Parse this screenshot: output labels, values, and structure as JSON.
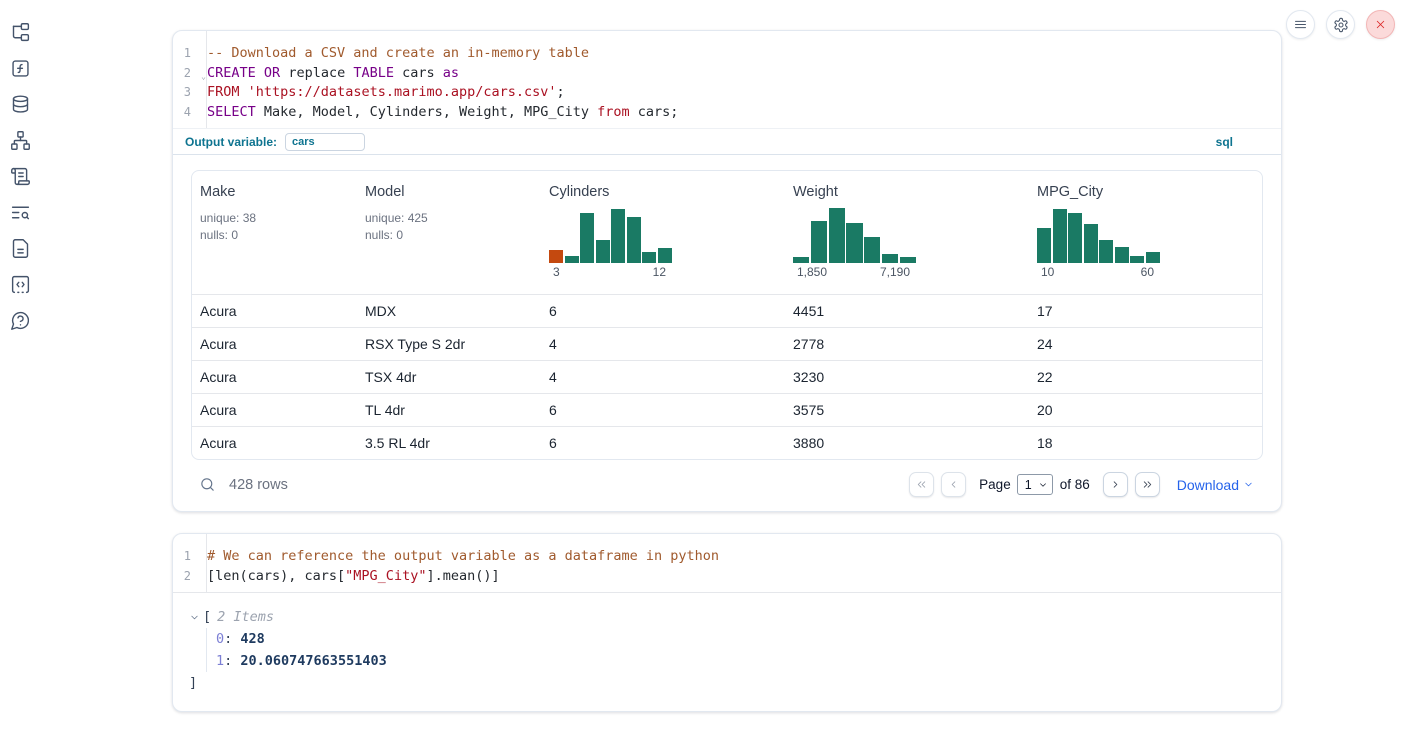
{
  "colors": {
    "accent_teal": "#0e7490",
    "hist_green": "#1a7a64",
    "hist_orange": "#c4490f",
    "link_blue": "#2563eb",
    "danger_red": "#dc2626"
  },
  "sidebar": {
    "icons": [
      "file-tree-icon",
      "function-icon",
      "database-icon",
      "dependency-graph-icon",
      "scratchpad-icon",
      "logs-search-icon",
      "documentation-icon",
      "snippets-icon",
      "help-icon"
    ]
  },
  "topbar": {
    "buttons": [
      "menu-icon",
      "settings-gear-icon",
      "shutdown-x-icon"
    ]
  },
  "cells": {
    "sql": {
      "lines": [
        {
          "n": "1",
          "tokens": [
            [
              "com",
              "-- Download a CSV and create an in-memory table"
            ]
          ]
        },
        {
          "n": "2",
          "fold": true,
          "tokens": [
            [
              "kw",
              "CREATE"
            ],
            [
              "pl",
              " "
            ],
            [
              "kw",
              "OR"
            ],
            [
              "pl",
              " replace "
            ],
            [
              "kw",
              "TABLE"
            ],
            [
              "pl",
              " cars "
            ],
            [
              "kw",
              "as"
            ]
          ]
        },
        {
          "n": "3",
          "tokens": [
            [
              "kw2",
              "FROM"
            ],
            [
              "pl",
              " "
            ],
            [
              "str",
              "'https://datasets.marimo.app/cars.csv'"
            ],
            [
              "pl",
              ";"
            ]
          ]
        },
        {
          "n": "4",
          "tokens": [
            [
              "kw",
              "SELECT"
            ],
            [
              "pl",
              " Make, Model, Cylinders, Weight, MPG_City "
            ],
            [
              "kw2",
              "from"
            ],
            [
              "pl",
              " cars;"
            ]
          ]
        }
      ],
      "output_variable_label": "Output variable:",
      "output_variable_value": "cars",
      "language_badge": "sql"
    },
    "python": {
      "lines": [
        {
          "n": "1",
          "tokens": [
            [
              "com",
              "# We can reference the output variable as a dataframe in python"
            ]
          ]
        },
        {
          "n": "2",
          "tokens": [
            [
              "pl",
              "[len(cars), cars["
            ],
            [
              "str",
              "\"MPG_City\""
            ],
            [
              "pl",
              "].mean()]"
            ]
          ]
        }
      ]
    }
  },
  "table": {
    "columns": [
      {
        "name": "Make",
        "stats": [
          "unique: 38",
          "nulls: 0"
        ]
      },
      {
        "name": "Model",
        "stats": [
          "unique: 425",
          "nulls: 0"
        ]
      },
      {
        "name": "Cylinders",
        "hist": {
          "heights": [
            22,
            13,
            88,
            40,
            95,
            80,
            20,
            27
          ],
          "highlight_index": 0,
          "min": "3",
          "max": "12"
        }
      },
      {
        "name": "Weight",
        "hist": {
          "heights": [
            10,
            73,
            97,
            70,
            46,
            16,
            11
          ],
          "min": "1,850",
          "max": "7,190"
        }
      },
      {
        "name": "MPG_City",
        "hist": {
          "heights": [
            62,
            95,
            88,
            68,
            40,
            28,
            13,
            20
          ],
          "min": "10",
          "max": "60"
        }
      }
    ],
    "rows": [
      [
        "Acura",
        "MDX",
        "6",
        "4451",
        "17"
      ],
      [
        "Acura",
        "RSX Type S 2dr",
        "4",
        "2778",
        "24"
      ],
      [
        "Acura",
        "TSX 4dr",
        "4",
        "3230",
        "22"
      ],
      [
        "Acura",
        "TL 4dr",
        "6",
        "3575",
        "20"
      ],
      [
        "Acura",
        "3.5 RL 4dr",
        "6",
        "3880",
        "18"
      ]
    ],
    "footer": {
      "rows_text": "428 rows",
      "page_label": "Page",
      "page_value": "1",
      "of_text": "of 86",
      "download_label": "Download"
    }
  },
  "output_tree": {
    "open_bracket": "[",
    "items_label": "2 Items",
    "entries": [
      {
        "key": "0",
        "value": "428"
      },
      {
        "key": "1",
        "value": "20.060747663551403"
      }
    ],
    "close_bracket": "]"
  }
}
